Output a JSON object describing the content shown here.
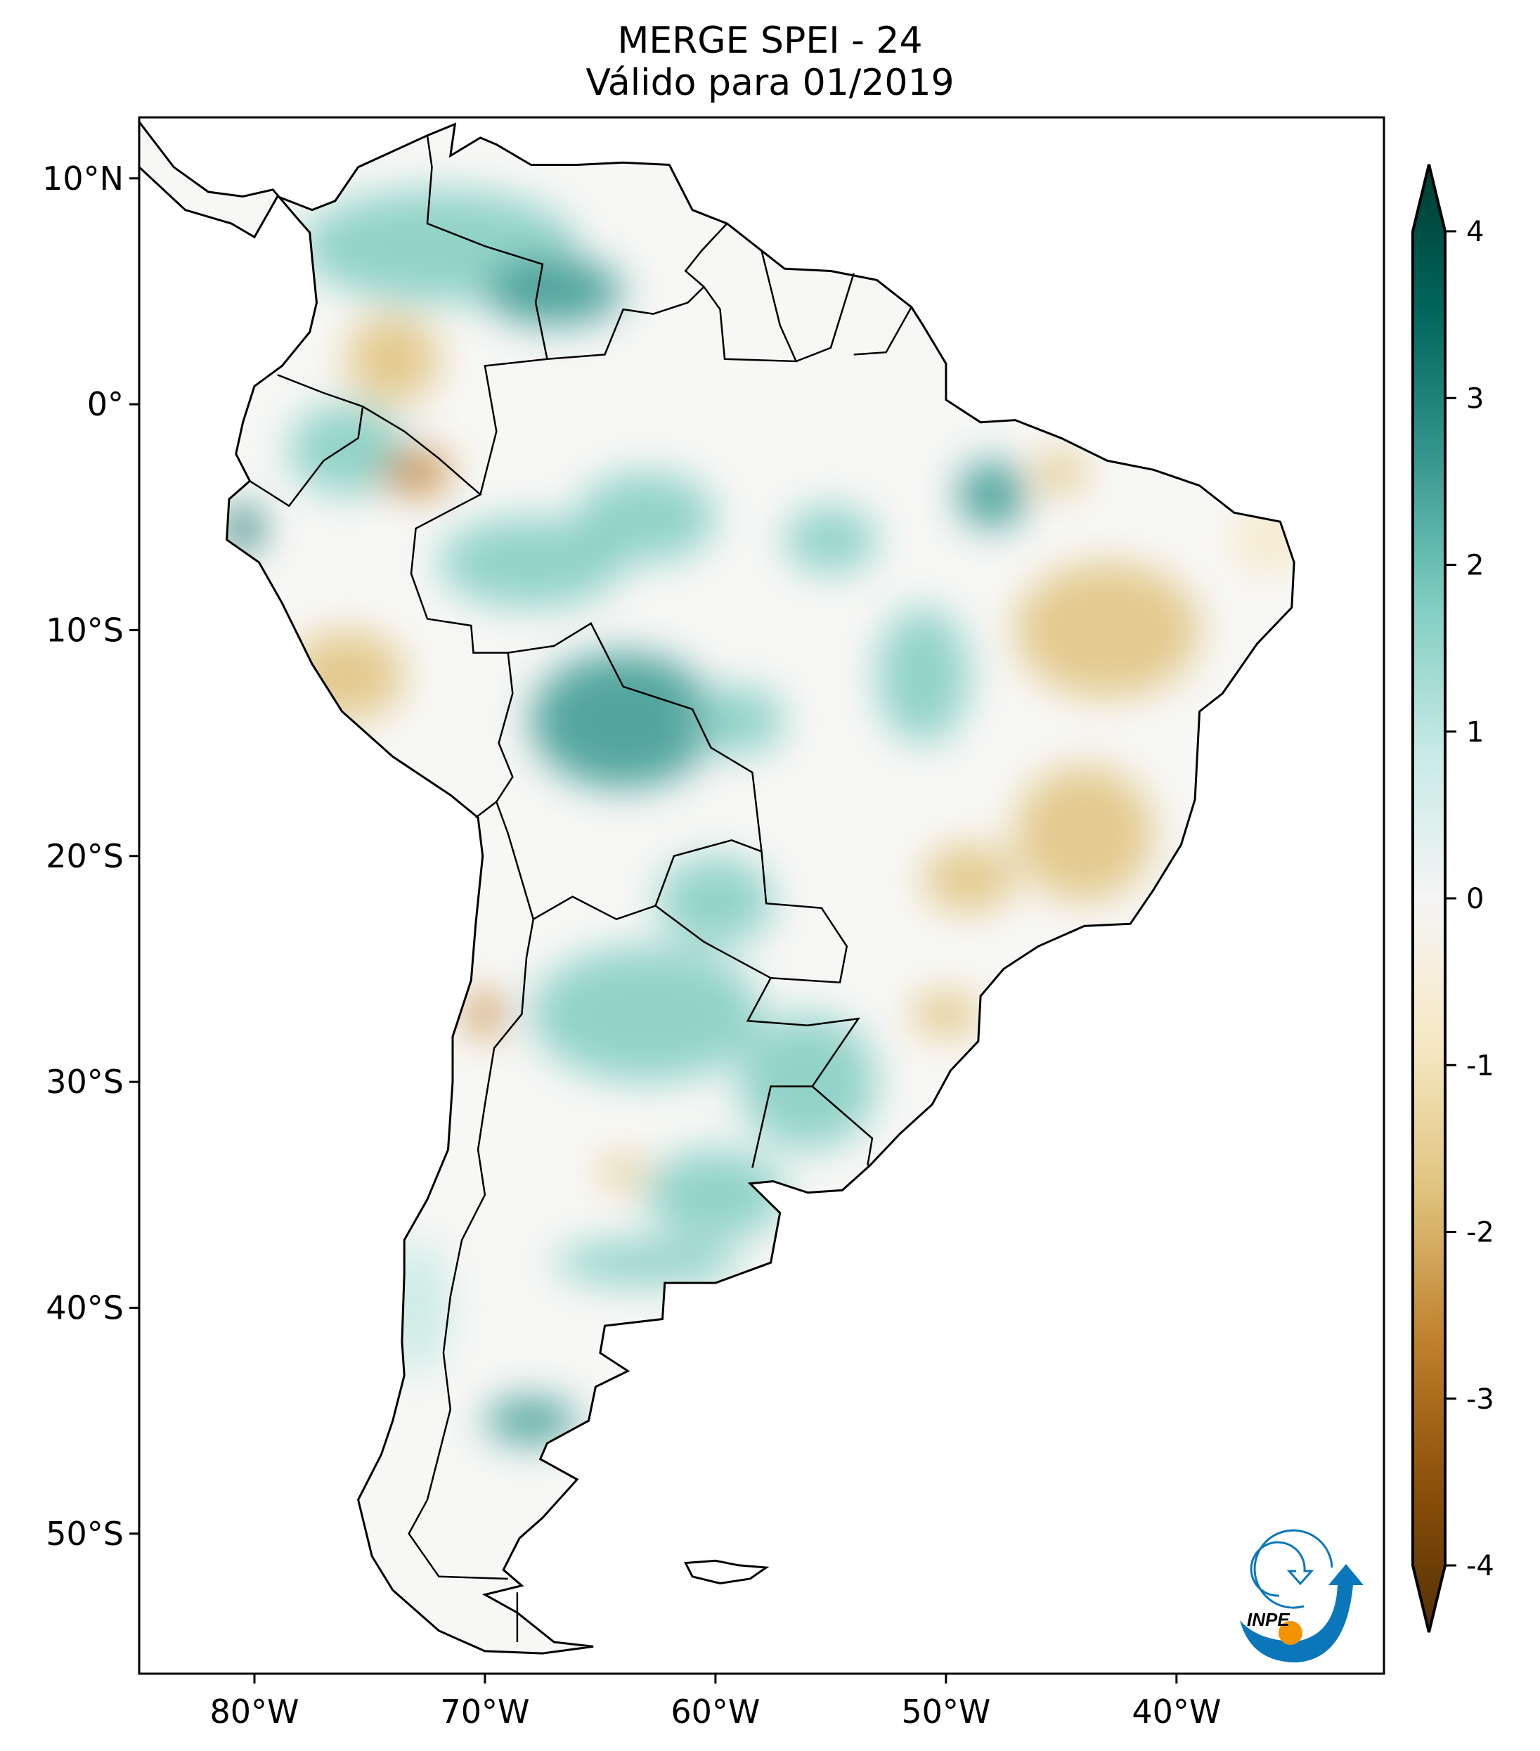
{
  "chart_data": {
    "type": "heatmap",
    "title": "MERGE   SPEI - 24",
    "subtitle": "Válido para 01/2019",
    "xlabel": "",
    "ylabel": "",
    "xlim": [
      -85,
      -31
    ],
    "ylim": [
      -56.2,
      12.7
    ],
    "x_ticks": [
      {
        "value": -80,
        "label": "80°W"
      },
      {
        "value": -70,
        "label": "70°W"
      },
      {
        "value": -60,
        "label": "60°W"
      },
      {
        "value": -50,
        "label": "50°W"
      },
      {
        "value": -40,
        "label": "40°W"
      }
    ],
    "y_ticks": [
      {
        "value": 10,
        "label": "10°N"
      },
      {
        "value": 0,
        "label": "0°"
      },
      {
        "value": -10,
        "label": "10°S"
      },
      {
        "value": -20,
        "label": "20°S"
      },
      {
        "value": -30,
        "label": "30°S"
      },
      {
        "value": -40,
        "label": "40°S"
      },
      {
        "value": -50,
        "label": "50°S"
      }
    ],
    "colorbar": {
      "range": [
        -4,
        4
      ],
      "extend": "both",
      "colormap": "BrBG",
      "ticks": [
        {
          "value": 4,
          "label": "4"
        },
        {
          "value": 3,
          "label": "3"
        },
        {
          "value": 2,
          "label": "2"
        },
        {
          "value": 1,
          "label": "1"
        },
        {
          "value": 0,
          "label": "0"
        },
        {
          "value": -1,
          "label": "-1"
        },
        {
          "value": -2,
          "label": "-2"
        },
        {
          "value": -3,
          "label": "-3"
        },
        {
          "value": -4,
          "label": "-4"
        }
      ],
      "colors": [
        "#003c30",
        "#01665e",
        "#35978f",
        "#80cdc1",
        "#c7eae5",
        "#f5f5f5",
        "#f6e8c3",
        "#dfc27d",
        "#bf812d",
        "#8c510a",
        "#543005"
      ]
    },
    "logo": {
      "text": "INPE",
      "blue": "#0a77bb",
      "orange": "#f29400"
    }
  }
}
